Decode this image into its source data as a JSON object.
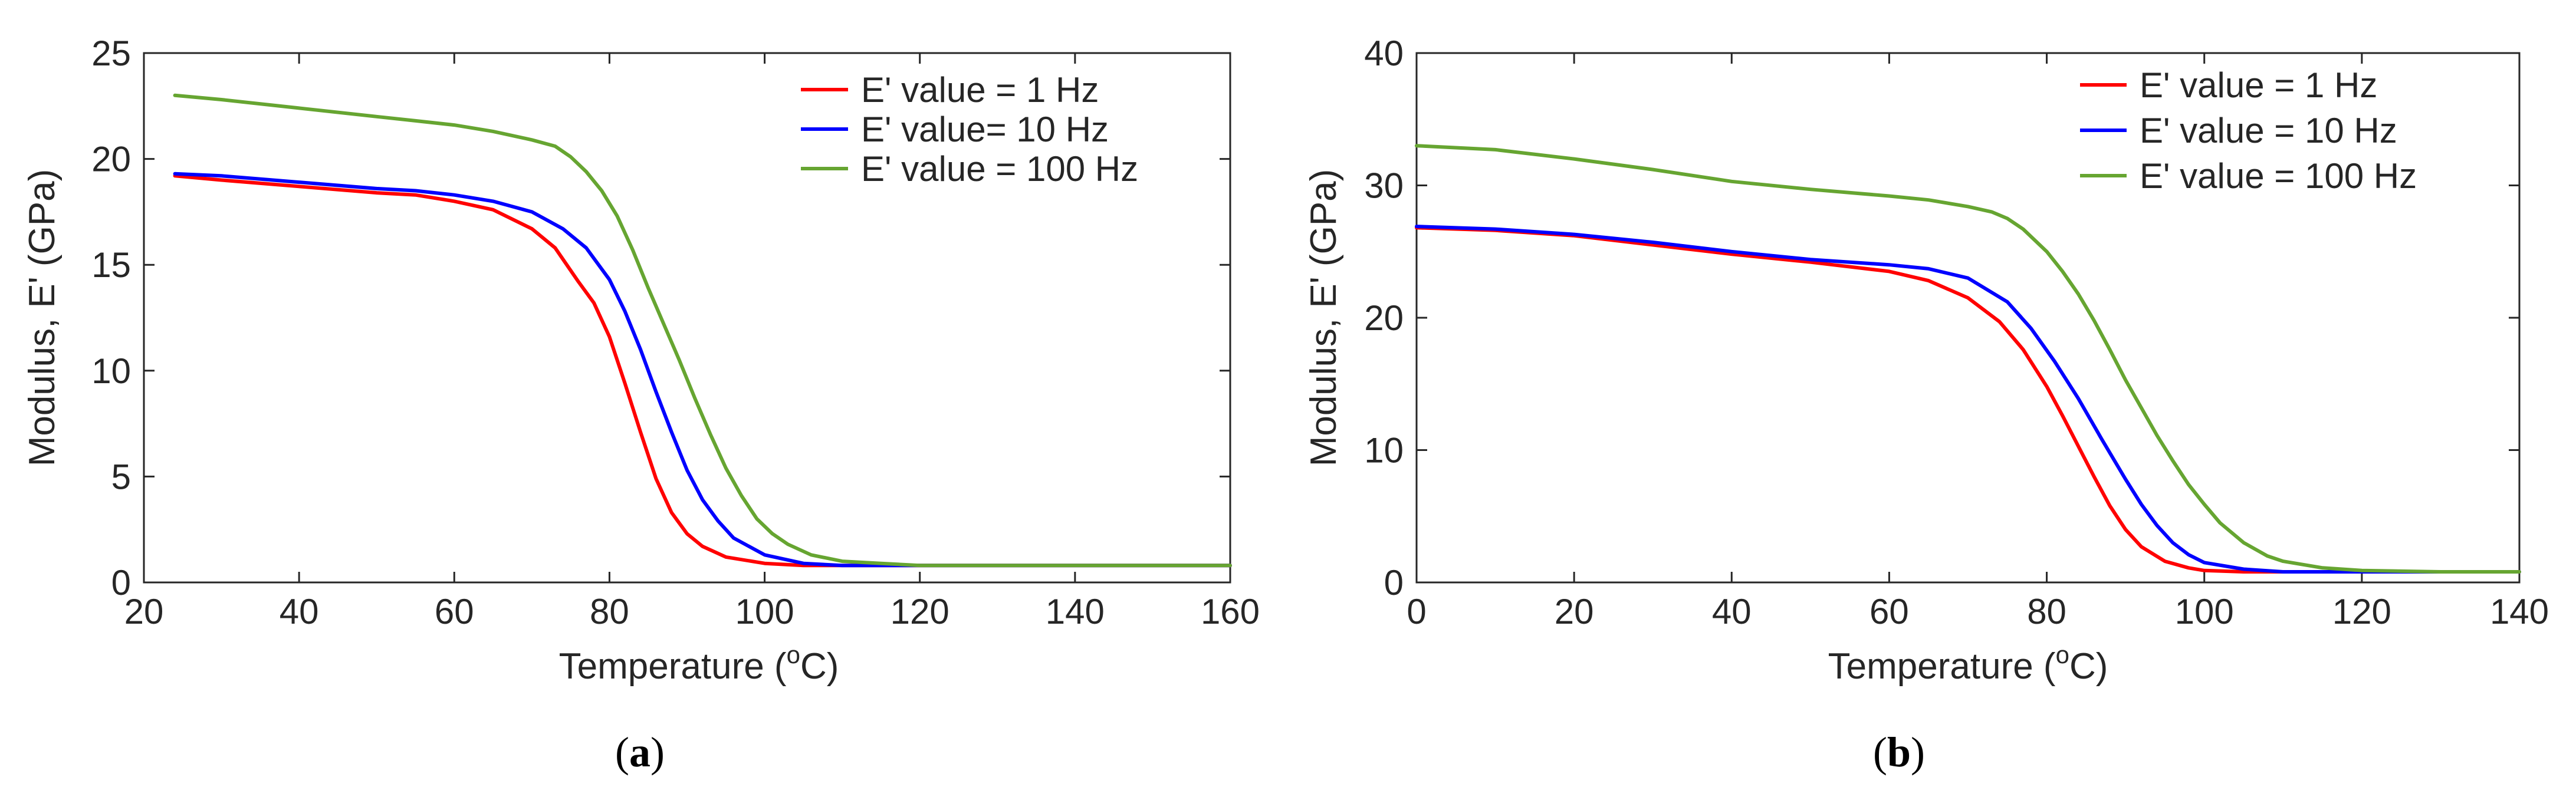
{
  "figure": {
    "captions": [
      {
        "open": "(",
        "letter": "a",
        "close": ")"
      },
      {
        "open": "(",
        "letter": "b",
        "close": ")"
      }
    ]
  },
  "chart_data": [
    {
      "type": "line",
      "panel": "a",
      "title": "",
      "xlabel": "Temperature",
      "xlabel_unit_prefix": "(",
      "xlabel_unit_sup": "o",
      "xlabel_unit_suffix": "C)",
      "ylabel": "Modulus, E' (GPa)",
      "xlim": [
        20,
        160
      ],
      "ylim": [
        0,
        25
      ],
      "xticks": [
        20,
        40,
        60,
        80,
        100,
        120,
        140,
        160
      ],
      "yticks": [
        0,
        5,
        10,
        15,
        20,
        25
      ],
      "grid": false,
      "legend_position": "top-right",
      "series": [
        {
          "name": "E' value = 1 Hz",
          "color": "#ff0000",
          "x": [
            24,
            30,
            40,
            50,
            55,
            60,
            65,
            70,
            73,
            76,
            78,
            80,
            82,
            84,
            86,
            88,
            90,
            92,
            95,
            100,
            105,
            110,
            120,
            130,
            140,
            150,
            160
          ],
          "y": [
            19.2,
            19.0,
            18.7,
            18.4,
            18.3,
            18.0,
            17.6,
            16.7,
            15.8,
            14.2,
            13.2,
            11.6,
            9.4,
            7.1,
            4.9,
            3.3,
            2.3,
            1.7,
            1.2,
            0.9,
            0.8,
            0.8,
            0.8,
            0.8,
            0.8,
            0.8,
            0.8
          ]
        },
        {
          "name": "E' value= 10 Hz",
          "color": "#0000ff",
          "x": [
            24,
            30,
            40,
            50,
            55,
            60,
            65,
            70,
            74,
            77,
            80,
            82,
            84,
            86,
            88,
            90,
            92,
            94,
            96,
            100,
            105,
            110,
            120,
            130,
            140,
            150,
            160
          ],
          "y": [
            19.3,
            19.2,
            18.9,
            18.6,
            18.5,
            18.3,
            18.0,
            17.5,
            16.7,
            15.8,
            14.3,
            12.8,
            11.0,
            9.0,
            7.1,
            5.3,
            3.9,
            2.9,
            2.1,
            1.3,
            0.9,
            0.8,
            0.8,
            0.8,
            0.8,
            0.8,
            0.8
          ]
        },
        {
          "name": "E' value = 100 Hz",
          "color": "#66a531",
          "x": [
            24,
            30,
            40,
            50,
            55,
            60,
            65,
            70,
            73,
            75,
            77,
            79,
            81,
            83,
            85,
            87,
            89,
            91,
            93,
            95,
            97,
            99,
            101,
            103,
            106,
            110,
            115,
            120,
            130,
            140,
            150,
            160
          ],
          "y": [
            23.0,
            22.8,
            22.4,
            22.0,
            21.8,
            21.6,
            21.3,
            20.9,
            20.6,
            20.1,
            19.4,
            18.5,
            17.3,
            15.7,
            13.9,
            12.2,
            10.5,
            8.7,
            7.0,
            5.4,
            4.1,
            3.0,
            2.3,
            1.8,
            1.3,
            1.0,
            0.9,
            0.8,
            0.8,
            0.8,
            0.8,
            0.8
          ]
        }
      ]
    },
    {
      "type": "line",
      "panel": "b",
      "title": "",
      "xlabel": "Temperature",
      "xlabel_unit_prefix": "(",
      "xlabel_unit_sup": "o",
      "xlabel_unit_suffix": "C)",
      "ylabel": "Modulus, E' (GPa)",
      "xlim": [
        0,
        140
      ],
      "ylim": [
        0,
        40
      ],
      "xticks": [
        0,
        20,
        40,
        60,
        80,
        100,
        120,
        140
      ],
      "yticks": [
        0,
        10,
        20,
        30,
        40
      ],
      "grid": false,
      "legend_position": "top-right",
      "series": [
        {
          "name": "E' value = 1 Hz",
          "color": "#ff0000",
          "x": [
            0,
            10,
            20,
            30,
            40,
            50,
            60,
            65,
            70,
            74,
            77,
            80,
            82,
            84,
            86,
            88,
            90,
            92,
            95,
            98,
            100,
            105,
            110,
            120,
            130,
            140
          ],
          "y": [
            26.8,
            26.6,
            26.2,
            25.5,
            24.8,
            24.2,
            23.5,
            22.8,
            21.5,
            19.7,
            17.6,
            14.8,
            12.6,
            10.3,
            8.0,
            5.8,
            4.0,
            2.7,
            1.6,
            1.1,
            0.9,
            0.8,
            0.8,
            0.8,
            0.8,
            0.8
          ]
        },
        {
          "name": "E' value = 10 Hz",
          "color": "#0000ff",
          "x": [
            0,
            10,
            20,
            30,
            40,
            50,
            60,
            65,
            70,
            75,
            78,
            81,
            84,
            87,
            90,
            92,
            94,
            96,
            98,
            100,
            105,
            110,
            120,
            130,
            140
          ],
          "y": [
            26.9,
            26.7,
            26.3,
            25.7,
            25.0,
            24.4,
            24.0,
            23.7,
            23.0,
            21.2,
            19.2,
            16.7,
            13.9,
            10.8,
            7.8,
            5.9,
            4.3,
            3.0,
            2.1,
            1.5,
            1.0,
            0.8,
            0.8,
            0.8,
            0.8
          ]
        },
        {
          "name": "E' value = 100 Hz",
          "color": "#66a531",
          "x": [
            0,
            10,
            20,
            30,
            40,
            50,
            60,
            65,
            70,
            73,
            75,
            77,
            80,
            82,
            84,
            86,
            88,
            90,
            92,
            94,
            96,
            98,
            100,
            102,
            105,
            108,
            110,
            115,
            120,
            130,
            140
          ],
          "y": [
            33.0,
            32.7,
            32.0,
            31.2,
            30.3,
            29.7,
            29.2,
            28.9,
            28.4,
            28.0,
            27.5,
            26.7,
            25.0,
            23.5,
            21.8,
            19.8,
            17.6,
            15.3,
            13.2,
            11.1,
            9.2,
            7.4,
            5.9,
            4.5,
            3.0,
            2.0,
            1.6,
            1.1,
            0.9,
            0.8,
            0.8
          ]
        }
      ]
    }
  ]
}
